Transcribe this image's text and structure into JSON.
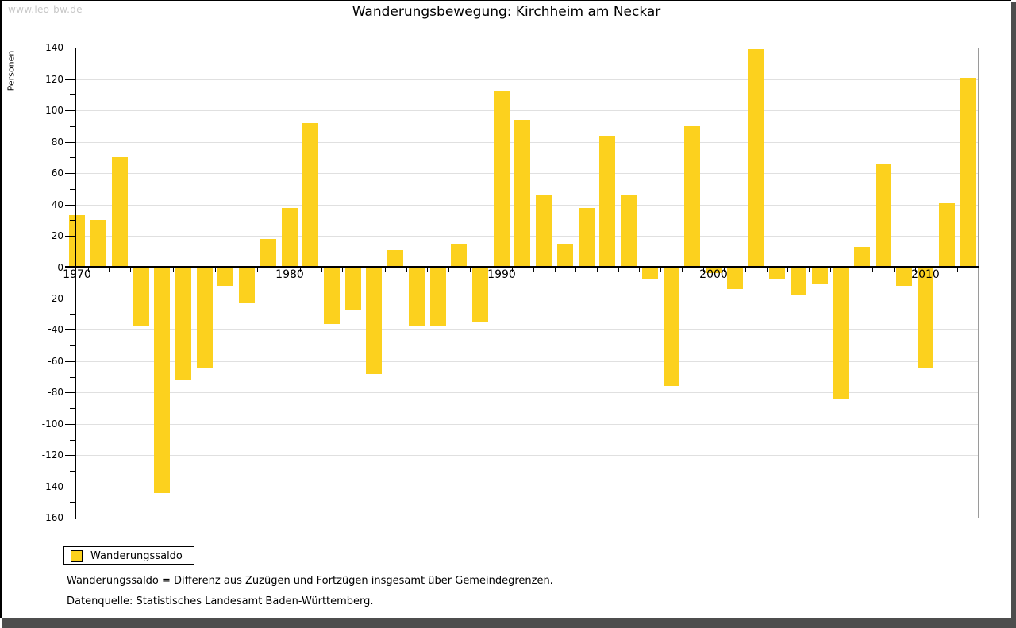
{
  "watermark": "www.leo-bw.de",
  "header": {
    "title": "Wanderungsbewegung: Kirchheim am Neckar"
  },
  "y_axis_title": "Personen",
  "legend": {
    "label": "Wanderungssaldo",
    "swatch_color": "#fcd11e"
  },
  "footnotes": {
    "definition": "Wanderungssaldo = Differenz aus Zuzügen und Fortzügen insgesamt über Gemeindegrenzen.",
    "source": "Datenquelle: Statistisches Landesamt Baden-Württemberg."
  },
  "chart_data": {
    "type": "bar",
    "title": "Wanderungsbewegung: Kirchheim am Neckar",
    "xlabel": "",
    "ylabel": "Personen",
    "series_name": "Wanderungssaldo",
    "x": [
      1970,
      1971,
      1972,
      1973,
      1974,
      1975,
      1976,
      1977,
      1978,
      1979,
      1980,
      1981,
      1982,
      1983,
      1984,
      1985,
      1986,
      1987,
      1988,
      1989,
      1990,
      1991,
      1992,
      1993,
      1994,
      1995,
      1996,
      1997,
      1998,
      1999,
      2000,
      2001,
      2002,
      2003,
      2004,
      2005,
      2006,
      2007,
      2008,
      2009,
      2010,
      2011,
      2012
    ],
    "values": [
      33,
      30,
      70,
      -38,
      -144,
      -72,
      -64,
      -12,
      -23,
      18,
      38,
      92,
      -36,
      -27,
      -68,
      11,
      -38,
      -37,
      15,
      -35,
      112,
      94,
      46,
      15,
      38,
      84,
      46,
      -8,
      -76,
      90,
      -4,
      -14,
      139,
      -8,
      -18,
      -11,
      -84,
      13,
      66,
      -12,
      -64,
      41,
      121
    ],
    "x_tick_labels": [
      "1970",
      "1980",
      "1990",
      "2000",
      "2010"
    ],
    "ylim": [
      -160,
      140
    ],
    "ytick_major_step": 20,
    "ytick_minor_step": 10,
    "grid": "horizontal",
    "legend_position": "bottom-left",
    "colors": {
      "bar": "#fcd11e",
      "gridline": "#e0e0e0",
      "axis": "#000000",
      "watermark_text": "#c8c8c8",
      "frame_shadow": "#4d4d4d"
    }
  }
}
